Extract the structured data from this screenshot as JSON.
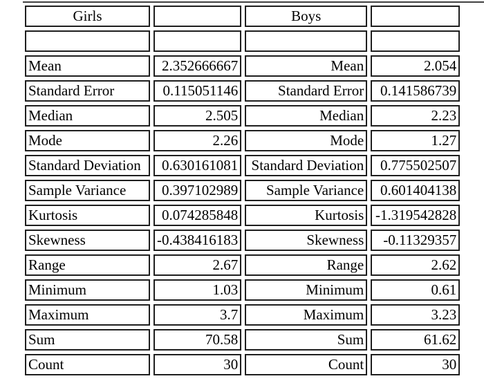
{
  "page": {
    "background": "#ffffff",
    "cell_border_color": "#1e1e1e",
    "top_divider_color": "#414141"
  },
  "chart_data": {
    "type": "table",
    "title": "",
    "columns": [
      "Girls",
      "",
      "Boys",
      ""
    ],
    "rows": [
      [
        "",
        "",
        "",
        ""
      ],
      [
        "Mean",
        "2.352666667",
        "Mean",
        "2.054"
      ],
      [
        "Standard Error",
        "0.115051146",
        "Standard Error",
        "0.141586739"
      ],
      [
        "Median",
        "2.505",
        "Median",
        "2.23"
      ],
      [
        "Mode",
        "2.26",
        "Mode",
        "1.27"
      ],
      [
        "Standard Deviation",
        "0.630161081",
        "Standard Deviation",
        "0.775502507"
      ],
      [
        "Sample Variance",
        "0.397102989",
        "Sample Variance",
        "0.601404138"
      ],
      [
        "Kurtosis",
        "0.074285848",
        "Kurtosis",
        "-1.319542828"
      ],
      [
        "Skewness",
        "-0.438416183",
        "Skewness",
        "-0.11329357"
      ],
      [
        "Range",
        "2.67",
        "Range",
        "2.62"
      ],
      [
        "Minimum",
        "1.03",
        "Minimum",
        "0.61"
      ],
      [
        "Maximum",
        "3.7",
        "Maximum",
        "3.23"
      ],
      [
        "Sum",
        "70.58",
        "Sum",
        "61.62"
      ],
      [
        "Count",
        "30",
        "Count",
        "30"
      ]
    ],
    "layout": {
      "girls_labels_align": "left",
      "boys_labels_align": "right",
      "values_align": "right",
      "headers_align": "center",
      "grid": "separated-bordered-cells"
    }
  }
}
